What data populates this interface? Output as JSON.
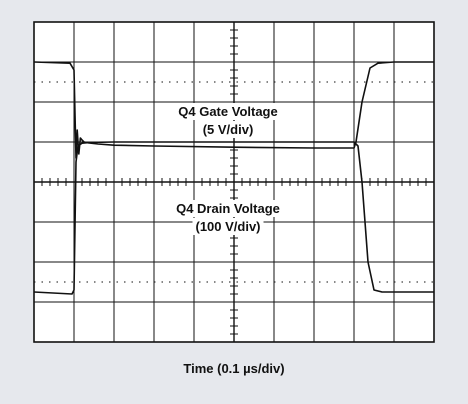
{
  "chart_data": {
    "type": "line",
    "title": "",
    "xlabel": "Time (0.1 µs/div)",
    "ylabel": "",
    "grid": true,
    "divisions": {
      "x": 10,
      "y": 8
    },
    "xlim": [
      0,
      10
    ],
    "ylim": [
      0,
      8
    ],
    "background": "#ffffff",
    "trace_color": "#111111",
    "series": [
      {
        "name": "Q4 Gate Voltage",
        "scale": "(5 V/div)",
        "x": [
          0,
          0.9,
          1.0,
          1.05,
          1.08,
          1.12,
          1.16,
          1.2,
          1.25,
          1.35,
          1.6,
          2.0,
          3.0,
          5.0,
          7.0,
          8.0,
          8.05,
          8.2,
          8.4,
          8.6,
          9.0,
          10
        ],
        "y": [
          7.0,
          6.97,
          6.8,
          4.6,
          5.3,
          4.7,
          5.1,
          5.05,
          5.0,
          4.98,
          4.95,
          4.92,
          4.9,
          4.87,
          4.85,
          4.85,
          5.0,
          6.0,
          6.85,
          6.97,
          7.0,
          7.0
        ]
      },
      {
        "name": "Q4 Drain Voltage",
        "scale": "(100 V/div)",
        "x": [
          0,
          0.95,
          1.0,
          1.05,
          1.1,
          1.2,
          1.4,
          2.0,
          5.0,
          8.0,
          8.1,
          8.2,
          8.35,
          8.5,
          8.7,
          9.0,
          10
        ],
        "y": [
          1.25,
          1.2,
          1.3,
          4.5,
          4.9,
          4.97,
          4.99,
          5.0,
          5.0,
          5.0,
          4.9,
          4.0,
          2.0,
          1.3,
          1.25,
          1.25,
          1.25
        ]
      }
    ]
  }
}
